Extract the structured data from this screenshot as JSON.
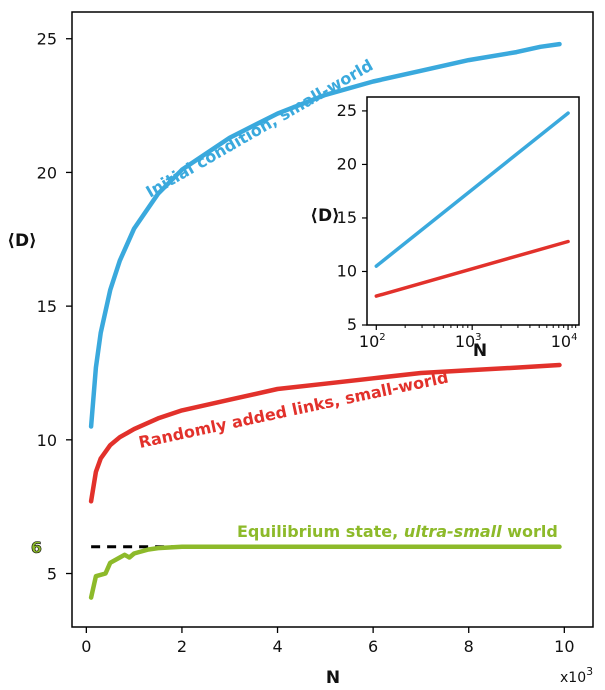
{
  "chart_data": [
    {
      "type": "line",
      "xlabel": "N",
      "ylabel": "⟨D⟩",
      "x_multiplier_base": "x10",
      "x_multiplier_exp": "3",
      "xlim": [
        -0.3,
        10.6
      ],
      "ylim": [
        3.0,
        26.0
      ],
      "x_ticks": [
        "0",
        "2",
        "4",
        "6",
        "8",
        "10"
      ],
      "x_tick_values": [
        0,
        2,
        4,
        6,
        8,
        10
      ],
      "y_ticks": [
        "5",
        "10",
        "15",
        "20",
        "25"
      ],
      "y_tick_values": [
        5,
        10,
        15,
        20,
        25
      ],
      "highlight_tick": {
        "label": "6",
        "value": 6,
        "color": "#8DBA2A"
      },
      "reference_line": {
        "y": 6,
        "style": "dashed",
        "color": "#000000"
      },
      "series": [
        {
          "name": "Initial condition, small-world",
          "color": "#3AA9DD",
          "x": [
            0.1,
            0.2,
            0.3,
            0.5,
            0.7,
            1.0,
            1.5,
            2.0,
            3.0,
            4.0,
            5.0,
            6.0,
            7.0,
            8.0,
            9.0,
            9.5,
            9.9
          ],
          "y": [
            10.5,
            12.7,
            14.0,
            15.6,
            16.7,
            17.9,
            19.2,
            20.1,
            21.3,
            22.2,
            22.9,
            23.4,
            23.8,
            24.2,
            24.5,
            24.7,
            24.8
          ]
        },
        {
          "name": "Randomly added links, small-world",
          "color": "#E2312B",
          "x": [
            0.1,
            0.2,
            0.3,
            0.5,
            0.7,
            1.0,
            1.5,
            2.0,
            3.0,
            4.0,
            5.0,
            6.0,
            7.0,
            8.0,
            9.0,
            9.9
          ],
          "y": [
            7.7,
            8.8,
            9.3,
            9.8,
            10.1,
            10.4,
            10.8,
            11.1,
            11.5,
            11.9,
            12.1,
            12.3,
            12.5,
            12.6,
            12.7,
            12.8
          ]
        },
        {
          "name": "Equilibrium state, ultra-small world",
          "color": "#8DBA2A",
          "x": [
            0.1,
            0.2,
            0.4,
            0.5,
            0.7,
            0.8,
            0.9,
            1.0,
            1.1,
            1.3,
            1.5,
            2.0,
            3.0,
            5.0,
            7.0,
            9.0,
            9.9
          ],
          "y": [
            4.1,
            4.9,
            5.0,
            5.4,
            5.6,
            5.7,
            5.6,
            5.75,
            5.8,
            5.9,
            5.95,
            6.0,
            6.0,
            6.0,
            6.0,
            6.0,
            6.0
          ]
        }
      ],
      "curve_labels": {
        "blue": "Initial condition, small-world",
        "red": "Randomly added links, small-world",
        "green_prefix": "Equilibrium state, ",
        "green_italic": "ultra-small",
        "green_suffix": " world"
      }
    },
    {
      "type": "line",
      "inset": true,
      "xlabel": "N",
      "ylabel": "⟨D⟩",
      "x_scale": "log",
      "xlim": [
        80,
        13000
      ],
      "ylim": [
        5,
        26.3
      ],
      "x_ticks": [
        {
          "base": "10",
          "exp": "2",
          "value": 100
        },
        {
          "base": "10",
          "exp": "3",
          "value": 1000
        },
        {
          "base": "10",
          "exp": "4",
          "value": 10000
        }
      ],
      "y_ticks": [
        "5",
        "10",
        "15",
        "20",
        "25"
      ],
      "y_tick_values": [
        5,
        10,
        15,
        20,
        25
      ],
      "series": [
        {
          "color": "#3AA9DD",
          "x": [
            100,
            10000
          ],
          "y": [
            10.5,
            24.8
          ]
        },
        {
          "color": "#E2312B",
          "x": [
            100,
            10000
          ],
          "y": [
            7.7,
            12.8
          ]
        }
      ]
    }
  ]
}
